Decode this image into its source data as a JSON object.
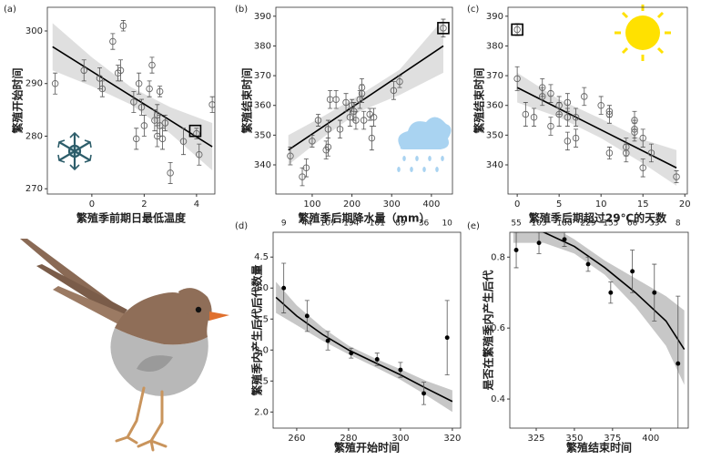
{
  "chart_data": [
    {
      "type": "scatter",
      "panel_label": "(a)",
      "xlabel": "繁殖季前期日最低温度",
      "ylabel": "繁殖开始时间",
      "marker": "open",
      "xlim": [
        -1.7,
        4.7
      ],
      "ylim": [
        269,
        304.5
      ],
      "xticks": [
        0,
        2,
        4
      ],
      "yticks": [
        270,
        280,
        290,
        300
      ],
      "x": [
        -1.4,
        -0.3,
        0.3,
        0.4,
        0.8,
        1.0,
        1.1,
        1.2,
        1.6,
        1.7,
        1.8,
        1.9,
        2.0,
        2.2,
        2.3,
        2.4,
        2.5,
        2.5,
        2.6,
        2.6,
        2.7,
        2.8,
        3.0,
        3.5,
        4.0,
        4.1,
        4.6
      ],
      "values": [
        290,
        292.5,
        291,
        289,
        298,
        292,
        292.5,
        301,
        286.5,
        279.5,
        290,
        285.5,
        282,
        289,
        293.5,
        283,
        284,
        280,
        288.5,
        282,
        279.5,
        282.5,
        273,
        279,
        280.5,
        276.5,
        286
      ],
      "errors": [
        2,
        2,
        2,
        1.5,
        1.5,
        1.5,
        2,
        1,
        2,
        2,
        2,
        1.5,
        2,
        1.5,
        1.5,
        2,
        2,
        2,
        1,
        2,
        2,
        1.5,
        2,
        2.5,
        1,
        2,
        1.5
      ],
      "highlight": {
        "x": 3.95,
        "y": 281
      },
      "fit": {
        "x": [
          -1.5,
          4.6
        ],
        "y": [
          297,
          278
        ]
      },
      "band": {
        "x": [
          -1.5,
          0,
          1.5,
          3,
          4.6
        ],
        "lower": [
          292.5,
          289.5,
          286,
          280.5,
          273.5
        ],
        "upper": [
          301.5,
          295,
          289.3,
          285.5,
          282.5
        ]
      }
    },
    {
      "type": "scatter",
      "panel_label": "(b)",
      "xlabel": "繁殖季后期降水量（mm）",
      "ylabel": "繁殖结束时间",
      "marker": "open",
      "xlim": [
        8.5,
        453
      ],
      "ylim": [
        330.2,
        393
      ],
      "xticks": [
        100,
        200,
        300,
        400
      ],
      "yticks": [
        340,
        350,
        360,
        370,
        380,
        390
      ],
      "x": [
        45,
        75,
        85,
        100,
        115,
        135,
        140,
        140,
        145,
        160,
        170,
        185,
        195,
        200,
        205,
        210,
        220,
        225,
        225,
        230,
        245,
        250,
        255,
        305,
        320,
        430
      ],
      "values": [
        343,
        336,
        339,
        348,
        355,
        345,
        346,
        352,
        362,
        362,
        352,
        361,
        356,
        360,
        358,
        355,
        362,
        366,
        364,
        355,
        357,
        349,
        356,
        365,
        368,
        386
      ],
      "errors": [
        3,
        3,
        3,
        2,
        2,
        3,
        3,
        3,
        3,
        3,
        3,
        3,
        3,
        2,
        3,
        3,
        3,
        3,
        3,
        3,
        2,
        4,
        3,
        3,
        2,
        3
      ],
      "highlight": {
        "x": 430,
        "y": 386
      },
      "fit": {
        "x": [
          40,
          430
        ],
        "y": [
          345,
          380
        ]
      },
      "band": {
        "x": [
          40,
          130,
          220,
          320,
          430
        ],
        "lower": [
          340,
          349.5,
          358,
          363.5,
          371
        ],
        "upper": [
          350,
          356.5,
          363.5,
          372,
          389
        ]
      }
    },
    {
      "type": "scatter",
      "panel_label": "(c)",
      "xlabel": "繁殖季后期超过29℃的天数",
      "ylabel": "繁殖结束时间",
      "marker": "open",
      "xlim": [
        -1.1,
        20.3
      ],
      "ylim": [
        330.2,
        393
      ],
      "xticks": [
        0,
        5,
        10,
        15,
        20
      ],
      "yticks": [
        340,
        350,
        360,
        370,
        380,
        390
      ],
      "x": [
        0,
        0,
        1,
        2,
        3,
        3,
        4,
        4,
        5,
        5,
        6,
        6,
        6,
        7,
        7,
        8,
        10,
        11,
        11,
        11,
        13,
        13,
        14,
        14,
        14,
        15,
        15,
        16,
        19
      ],
      "values": [
        385.5,
        369,
        357,
        356,
        366,
        363,
        353,
        364,
        360,
        357,
        348,
        361,
        356,
        349,
        356,
        363,
        360,
        344,
        357,
        358,
        344,
        346,
        351,
        355,
        352,
        339,
        349,
        344,
        336
      ],
      "errors": [
        2,
        4,
        4,
        3,
        3,
        3,
        3,
        3,
        3,
        4,
        3,
        3,
        3,
        3,
        3,
        3,
        3,
        2,
        3,
        2,
        3,
        3,
        3,
        3,
        3,
        3,
        3,
        3,
        2
      ],
      "highlight": {
        "x": 0,
        "y": 385.5
      },
      "fit": {
        "x": [
          0,
          19
        ],
        "y": [
          366,
          339
        ]
      },
      "band": {
        "x": [
          0,
          5,
          10,
          15,
          19
        ],
        "lower": [
          361,
          356,
          349,
          340.5,
          333
        ],
        "upper": [
          371,
          362,
          355.5,
          348.5,
          345
        ]
      }
    },
    {
      "type": "scatter",
      "panel_label": "(d)",
      "xlabel": "繁殖开始时间",
      "ylabel": "繁殖季内产生后代后代数量",
      "marker": "filled",
      "xlim": [
        250.9,
        323.2
      ],
      "ylim": [
        1.74,
        4.9
      ],
      "xticks": [
        260,
        280,
        300,
        320
      ],
      "yticks": [
        {
          "value": 2,
          "label": "2.0"
        },
        2.5,
        {
          "value": 3,
          "label": "3.0"
        },
        3.5,
        {
          "value": 4,
          "label": "4.0"
        },
        4.5
      ],
      "x": [
        255,
        264,
        272,
        281,
        291,
        300,
        309,
        318
      ],
      "values": [
        4.0,
        3.55,
        3.15,
        2.95,
        2.85,
        2.68,
        2.3,
        3.2
      ],
      "errors": [
        0.4,
        0.25,
        0.15,
        0.08,
        0.1,
        0.12,
        0.18,
        0.6
      ],
      "sample_sizes": [
        9,
        44,
        107,
        194,
        161,
        89,
        36,
        10
      ],
      "fit": {
        "x": [
          252,
          260,
          270,
          280,
          290,
          300,
          310,
          320
        ],
        "y": [
          3.85,
          3.55,
          3.25,
          3.0,
          2.8,
          2.6,
          2.38,
          2.17
        ]
      },
      "band": {
        "x": [
          252,
          260,
          270,
          280,
          290,
          300,
          310,
          320
        ],
        "lower": [
          3.6,
          3.4,
          3.15,
          2.93,
          2.73,
          2.52,
          2.27,
          2.0
        ],
        "upper": [
          4.1,
          3.72,
          3.36,
          3.07,
          2.87,
          2.69,
          2.5,
          2.35
        ]
      }
    },
    {
      "type": "scatter",
      "panel_label": "(e)",
      "xlabel": "繁殖结束时间",
      "ylabel": "是否在繁殖季内产生后代",
      "marker": "filled",
      "xlim": [
        307.7,
        424.6
      ],
      "ylim": [
        0.318,
        0.87
      ],
      "xticks": [
        325,
        350,
        375,
        400
      ],
      "yticks": [
        0.4,
        0.6,
        0.8
      ],
      "x": [
        311.9,
        326.8,
        343.5,
        359,
        373.8,
        388,
        402.4,
        417.9
      ],
      "values": [
        0.82,
        0.84,
        0.85,
        0.78,
        0.7,
        0.76,
        0.7,
        0.5
      ],
      "errors": [
        0.05,
        0.03,
        0.02,
        0.02,
        0.03,
        0.06,
        0.08,
        0.19
      ],
      "sample_sizes": [
        55,
        103,
        180,
        229,
        155,
        66,
        33,
        8
      ],
      "fit": {
        "x": [
          310,
          330,
          350,
          370,
          390,
          410,
          422
        ],
        "y": [
          0.89,
          0.87,
          0.83,
          0.77,
          0.7,
          0.62,
          0.54
        ]
      },
      "band": {
        "x": [
          310,
          330,
          350,
          370,
          390,
          410,
          422
        ],
        "lower": [
          0.84,
          0.84,
          0.81,
          0.75,
          0.66,
          0.55,
          0.44
        ],
        "upper": [
          0.93,
          0.9,
          0.85,
          0.79,
          0.74,
          0.69,
          0.65
        ]
      }
    }
  ]
}
